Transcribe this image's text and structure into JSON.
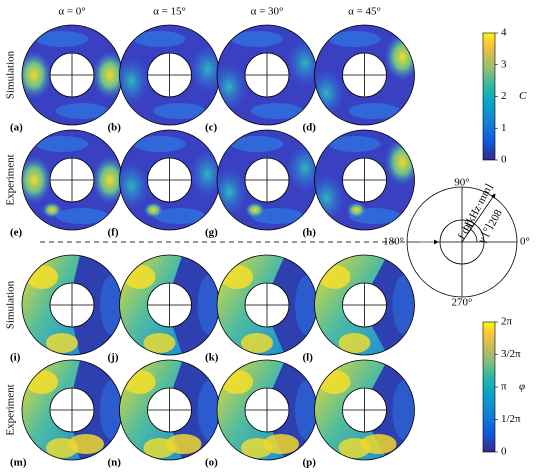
{
  "column_headers": [
    "α = 0°",
    "α = 15°",
    "α = 30°",
    "α = 45°"
  ],
  "row_labels": [
    "Simulation",
    "Experiment",
    "Simulation",
    "Experiment"
  ],
  "panel_labels": [
    "(a)",
    "(b)",
    "(c)",
    "(d)",
    "(e)",
    "(f)",
    "(g)",
    "(h)",
    "(i)",
    "(j)",
    "(k)",
    "(l)",
    "(m)",
    "(n)",
    "(o)",
    "(p)"
  ],
  "amplitude_colorbar": {
    "ticks": [
      "4",
      "3",
      "2",
      "1",
      "0"
    ],
    "label": "C"
  },
  "phase_colorbar": {
    "ticks": [
      "2π",
      "3/2π",
      "π",
      "1/2π",
      "0"
    ],
    "label": "φ"
  },
  "polar_diagram": {
    "angle_labels": [
      "90°",
      "180°",
      "270°",
      "0°"
    ],
    "radial_label": "f d [kHz·mm]",
    "radial_max": "208",
    "angle_mark": "90",
    "angle_label": "γ [°]"
  }
}
